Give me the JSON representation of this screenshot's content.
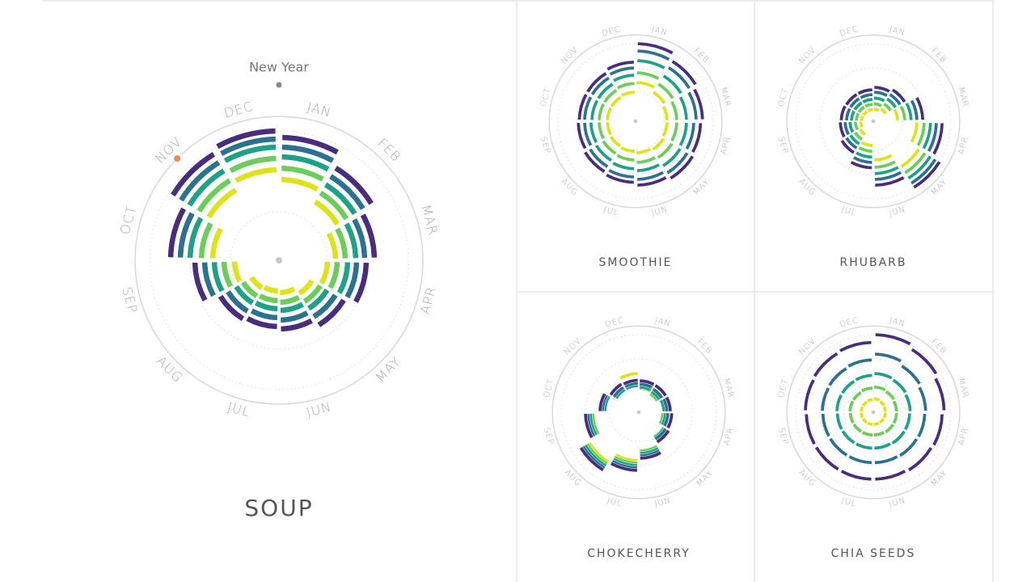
{
  "chart_data": [
    {
      "type": "radial",
      "title": "SOUP",
      "annotation": "New Year",
      "months": [
        "JAN",
        "FEB",
        "MAR",
        "APR",
        "MAY",
        "JUN",
        "JUL",
        "AUG",
        "SEP",
        "OCT",
        "NOV",
        "DEC"
      ],
      "colors": [
        "#dde318",
        "#6ccd5a",
        "#1fa187",
        "#2c728e",
        "#472d7b"
      ],
      "values": [
        [
          80,
          65,
          50,
          40,
          28,
          20,
          18,
          20,
          35,
          62,
          82,
          92
        ],
        [
          84,
          68,
          52,
          42,
          30,
          22,
          20,
          22,
          38,
          66,
          86,
          96
        ],
        [
          88,
          70,
          55,
          45,
          30,
          22,
          20,
          22,
          40,
          70,
          90,
          100
        ],
        [
          90,
          72,
          56,
          46,
          32,
          24,
          21,
          24,
          42,
          72,
          92,
          100
        ],
        [
          92,
          74,
          58,
          48,
          34,
          25,
          22,
          25,
          44,
          74,
          94,
          100
        ]
      ]
    },
    {
      "type": "radial",
      "title": "SMOOTHIE",
      "months": [
        "JAN",
        "FEB",
        "MAR",
        "APR",
        "MAY",
        "JUN",
        "JUL",
        "AUG",
        "SEP",
        "OCT",
        "NOV",
        "DEC"
      ],
      "colors": [
        "#dde318",
        "#6ccd5a",
        "#1fa187",
        "#2c728e",
        "#472d7b"
      ],
      "values": [
        [
          60,
          50,
          45,
          45,
          48,
          45,
          42,
          40,
          38,
          38,
          38,
          40
        ],
        [
          70,
          60,
          55,
          55,
          58,
          55,
          50,
          48,
          45,
          45,
          45,
          48
        ],
        [
          85,
          70,
          65,
          65,
          68,
          62,
          58,
          55,
          52,
          50,
          50,
          55
        ],
        [
          95,
          80,
          75,
          70,
          75,
          70,
          65,
          60,
          55,
          55,
          55,
          60
        ],
        [
          100,
          85,
          78,
          74,
          78,
          72,
          66,
          62,
          58,
          56,
          56,
          62
        ]
      ]
    },
    {
      "type": "radial",
      "title": "RHUBARB",
      "months": [
        "JAN",
        "FEB",
        "MAR",
        "APR",
        "MAY",
        "JUN",
        "JUL",
        "AUG",
        "SEP",
        "OCT",
        "NOV",
        "DEC"
      ],
      "colors": [
        "#dde318",
        "#6ccd5a",
        "#1fa187",
        "#2c728e",
        "#472d7b"
      ],
      "values": [
        [
          5,
          10,
          30,
          70,
          90,
          60,
          30,
          12,
          6,
          4,
          4,
          4
        ],
        [
          6,
          12,
          35,
          75,
          95,
          65,
          32,
          14,
          7,
          5,
          5,
          5
        ],
        [
          8,
          14,
          38,
          78,
          98,
          68,
          34,
          15,
          8,
          5,
          5,
          5
        ],
        [
          10,
          15,
          40,
          80,
          100,
          70,
          35,
          15,
          8,
          5,
          5,
          5
        ],
        [
          10,
          16,
          42,
          82,
          100,
          72,
          36,
          16,
          8,
          6,
          5,
          5
        ]
      ]
    },
    {
      "type": "radial",
      "title": "CHOKECHERRY",
      "months": [
        "JAN",
        "FEB",
        "MAR",
        "APR",
        "MAY",
        "JUN",
        "JUL",
        "AUG",
        "SEP",
        "OCT",
        "NOV",
        "DEC"
      ],
      "colors": [
        "#dde318",
        "#6ccd5a",
        "#1fa187",
        "#2c728e",
        "#472d7b"
      ],
      "values": [
        [
          30,
          25,
          40,
          35,
          45,
          60,
          80,
          100,
          75,
          50,
          35,
          60
        ],
        [
          20,
          15,
          25,
          20,
          30,
          50,
          75,
          95,
          65,
          40,
          25,
          30
        ],
        [
          12,
          10,
          12,
          15,
          22,
          45,
          70,
          90,
          60,
          30,
          15,
          15
        ],
        [
          8,
          6,
          8,
          10,
          15,
          40,
          65,
          85,
          55,
          25,
          10,
          10
        ],
        [
          5,
          5,
          5,
          8,
          12,
          35,
          60,
          80,
          50,
          20,
          8,
          6
        ]
      ]
    },
    {
      "type": "radial",
      "title": "CHIA SEEDS",
      "months": [
        "JAN",
        "FEB",
        "MAR",
        "APR",
        "MAY",
        "JUN",
        "JUL",
        "AUG",
        "SEP",
        "OCT",
        "NOV",
        "DEC"
      ],
      "colors": [
        "#dde318",
        "#6ccd5a",
        "#1fa187",
        "#2c728e",
        "#472d7b"
      ],
      "values": [
        [
          8,
          6,
          5,
          5,
          5,
          5,
          5,
          5,
          5,
          5,
          5,
          6
        ],
        [
          22,
          20,
          18,
          18,
          18,
          17,
          17,
          17,
          17,
          18,
          18,
          20
        ],
        [
          40,
          38,
          36,
          35,
          35,
          34,
          34,
          34,
          34,
          35,
          35,
          36
        ],
        [
          70,
          62,
          58,
          56,
          55,
          54,
          54,
          54,
          54,
          55,
          56,
          58
        ],
        [
          100,
          92,
          86,
          82,
          80,
          78,
          78,
          78,
          78,
          80,
          82,
          84
        ]
      ]
    }
  ]
}
